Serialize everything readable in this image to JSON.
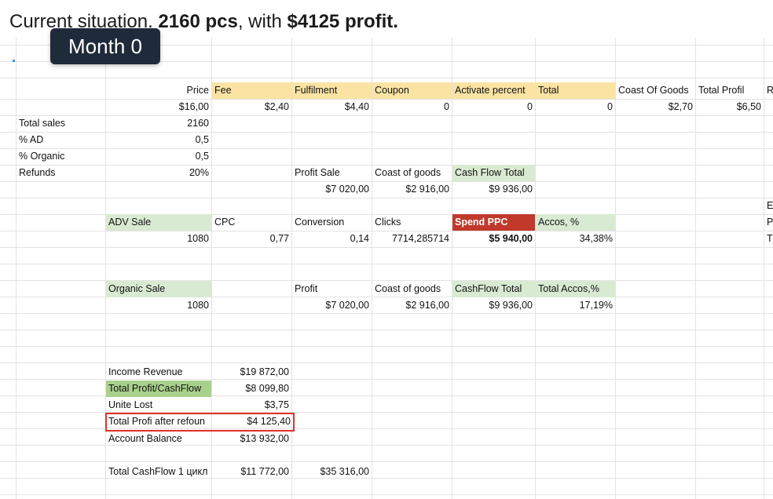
{
  "heading": {
    "prefix": "Current situation. ",
    "pcs": "2160 pcs",
    "middle": ", with ",
    "profit": "$4125 profit."
  },
  "badge": "Month 0",
  "row1": {
    "price": "Price",
    "fee": "Fee",
    "fulfilment": "Fulfilment",
    "coupon": "Coupon",
    "activate": "Activate percent",
    "total": "Total",
    "coast_goods": "Coast Of Goods",
    "total_profil": "Total Profil",
    "extra": "R"
  },
  "row2": {
    "price": "$16,00",
    "fee": "$2,40",
    "fulfilment": "$4,40",
    "coupon": "0",
    "activate": "0",
    "total": "0",
    "coast_goods": "$2,70",
    "total_profil": "$6,50"
  },
  "labels": {
    "total_sales": "Total sales",
    "total_sales_val": "2160",
    "ad": "% AD",
    "ad_val": "0,5",
    "organic": "% Organic",
    "organic_val": "0,5",
    "refunds": "Refunds",
    "refunds_val": "20%"
  },
  "profit_block": {
    "profit_sale": "Profit Sale",
    "coast_goods": "Coast of goods",
    "cash_flow": "Cash Flow Total",
    "profit_sale_val": "$7 020,00",
    "coast_goods_val": "$2 916,00",
    "cash_flow_val": "$9 936,00"
  },
  "adv": {
    "adv_sale": "ADV Sale",
    "cpc": "CPC",
    "conversion": "Conversion",
    "clicks": "Clicks",
    "spend": "Spend PPC",
    "accos": "Accos, %",
    "adv_sale_val": "1080",
    "cpc_val": "0,77",
    "conversion_val": "0,14",
    "clicks_val": "7714,285714",
    "spend_val": "$5 940,00",
    "accos_val": "34,38%"
  },
  "organic": {
    "organic_sale": "Organic Sale",
    "profit": "Profit",
    "coast_goods": "Coast of goods",
    "cashflow_total": "CashFlow Total",
    "total_accos": "Total Accos,%",
    "organic_sale_val": "1080",
    "profit_val": "$7 020,00",
    "coast_goods_val": "$2 916,00",
    "cashflow_val": "$9 936,00",
    "total_accos_val": "17,19%"
  },
  "summary": {
    "income_revenue": "Income Revenue",
    "income_revenue_val": "$19 872,00",
    "total_profit": "Total Profit/CashFlow",
    "total_profit_val": "$8 099,80",
    "unite_lost": "Unite Lost",
    "unite_lost_val": "$3,75",
    "profit_after": "Total Profi after refoun",
    "profit_after_val": "$4 125,40",
    "account_balance": "Account Balance",
    "account_balance_val": "$13 932,00",
    "cashflow_cycle": "Total CashFlow 1 цикл",
    "cashflow_cycle_val": "$11 772,00",
    "cashflow_cycle_val2": "$35 316,00"
  },
  "edge": {
    "e1": "E",
    "e2": "P",
    "e3": "T"
  }
}
